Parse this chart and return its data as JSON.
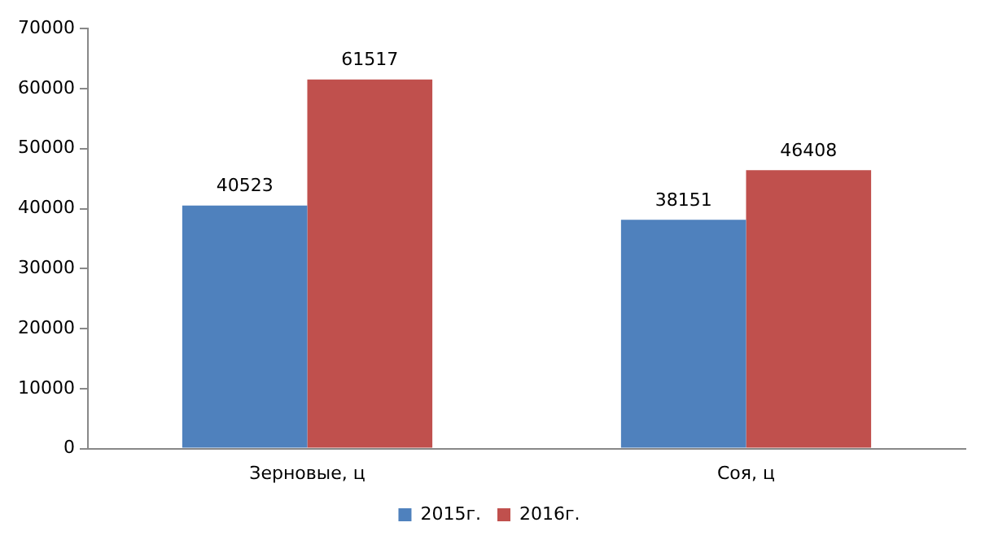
{
  "chart_data": {
    "type": "bar",
    "categories": [
      "Зерновые, ц",
      "Соя, ц"
    ],
    "series": [
      {
        "name": "2015г.",
        "color": "#4f81bd",
        "values": [
          40523,
          38151
        ]
      },
      {
        "name": "2016г.",
        "color": "#c0504d",
        "values": [
          61517,
          46408
        ]
      }
    ],
    "ylim": [
      0,
      70000
    ],
    "yticks": [
      0,
      10000,
      20000,
      30000,
      40000,
      50000,
      60000,
      70000
    ],
    "grid": false,
    "legend": "bottom",
    "data_labels": true
  }
}
